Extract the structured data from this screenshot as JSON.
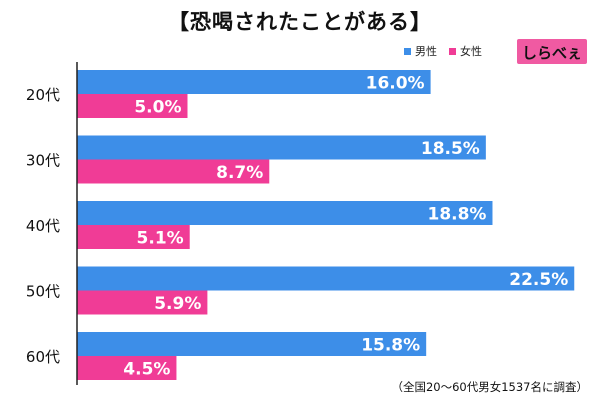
{
  "title": "【恐喝されたことがある】",
  "footnote": "（全国20～60代男女1537名に調査）",
  "logo": {
    "text": "しらべぇ"
  },
  "colors": {
    "male": "#3d8ee8",
    "female": "#f03c96",
    "axis": "#222222"
  },
  "chart_data": {
    "type": "bar",
    "orientation": "horizontal",
    "title": "【恐喝されたことがある】",
    "categories": [
      "20代",
      "30代",
      "40代",
      "50代",
      "60代"
    ],
    "series": [
      {
        "name": "男性",
        "values": [
          16.0,
          18.5,
          18.8,
          22.5,
          15.8
        ],
        "labels": [
          "16.0%",
          "18.5%",
          "18.8%",
          "22.5%",
          "15.8%"
        ]
      },
      {
        "name": "女性",
        "values": [
          5.0,
          8.7,
          5.1,
          5.9,
          4.5
        ],
        "labels": [
          "5.0%",
          "8.7%",
          "5.1%",
          "5.9%",
          "4.5%"
        ]
      }
    ],
    "xlim": [
      0,
      25
    ],
    "legend": "top-right",
    "grid": false
  }
}
